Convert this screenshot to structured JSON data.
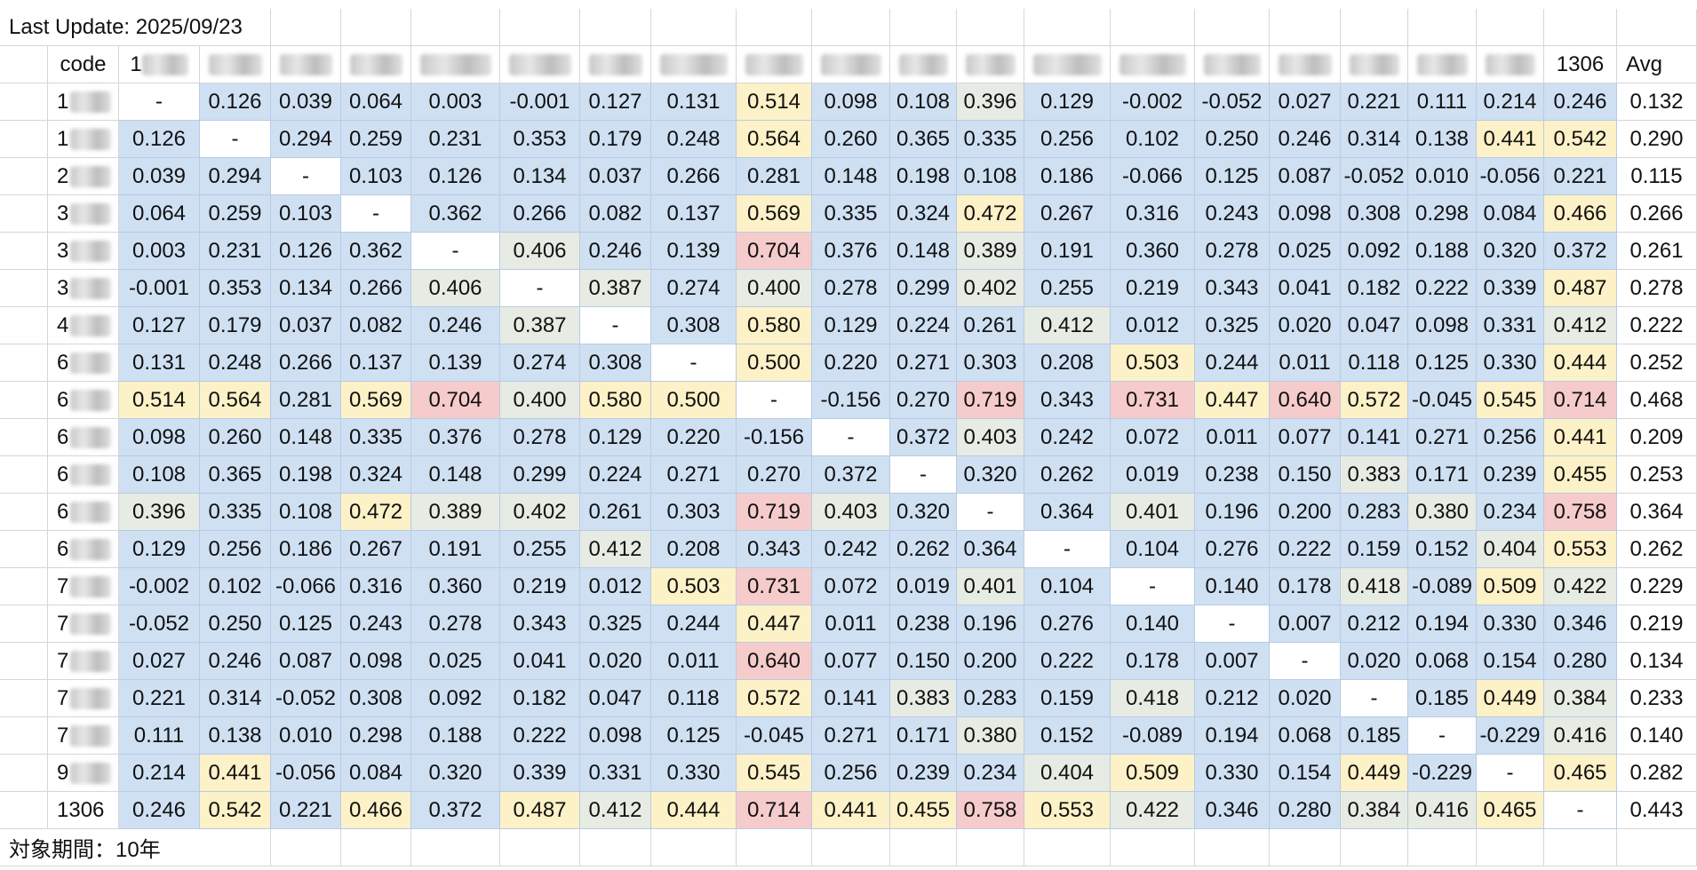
{
  "last_update": "Last Update: 2025/09/23",
  "header": {
    "code_label": "code",
    "first_col_prefix": "1",
    "last_col": "1306",
    "avg_label": "Avg"
  },
  "row_codes": [
    "1",
    "1",
    "2",
    "3",
    "3",
    "3",
    "4",
    "6",
    "6",
    "6",
    "6",
    "6",
    "6",
    "7",
    "7",
    "7",
    "7",
    "7",
    "9",
    "1306"
  ],
  "row_code_blurred": [
    true,
    true,
    true,
    true,
    true,
    true,
    true,
    true,
    true,
    true,
    true,
    true,
    true,
    true,
    true,
    true,
    true,
    true,
    true,
    false
  ],
  "matrix": [
    [
      "-",
      "0.126",
      "0.039",
      "0.064",
      "0.003",
      "-0.001",
      "0.127",
      "0.131",
      "0.514",
      "0.098",
      "0.108",
      "0.396",
      "0.129",
      "-0.002",
      "-0.052",
      "0.027",
      "0.221",
      "0.111",
      "0.214",
      "0.246"
    ],
    [
      "0.126",
      "-",
      "0.294",
      "0.259",
      "0.231",
      "0.353",
      "0.179",
      "0.248",
      "0.564",
      "0.260",
      "0.365",
      "0.335",
      "0.256",
      "0.102",
      "0.250",
      "0.246",
      "0.314",
      "0.138",
      "0.441",
      "0.542"
    ],
    [
      "0.039",
      "0.294",
      "-",
      "0.103",
      "0.126",
      "0.134",
      "0.037",
      "0.266",
      "0.281",
      "0.148",
      "0.198",
      "0.108",
      "0.186",
      "-0.066",
      "0.125",
      "0.087",
      "-0.052",
      "0.010",
      "-0.056",
      "0.221"
    ],
    [
      "0.064",
      "0.259",
      "0.103",
      "-",
      "0.362",
      "0.266",
      "0.082",
      "0.137",
      "0.569",
      "0.335",
      "0.324",
      "0.472",
      "0.267",
      "0.316",
      "0.243",
      "0.098",
      "0.308",
      "0.298",
      "0.084",
      "0.466"
    ],
    [
      "0.003",
      "0.231",
      "0.126",
      "0.362",
      "-",
      "0.406",
      "0.246",
      "0.139",
      "0.704",
      "0.376",
      "0.148",
      "0.389",
      "0.191",
      "0.360",
      "0.278",
      "0.025",
      "0.092",
      "0.188",
      "0.320",
      "0.372"
    ],
    [
      "-0.001",
      "0.353",
      "0.134",
      "0.266",
      "0.406",
      "-",
      "0.387",
      "0.274",
      "0.400",
      "0.278",
      "0.299",
      "0.402",
      "0.255",
      "0.219",
      "0.343",
      "0.041",
      "0.182",
      "0.222",
      "0.339",
      "0.487"
    ],
    [
      "0.127",
      "0.179",
      "0.037",
      "0.082",
      "0.246",
      "0.387",
      "-",
      "0.308",
      "0.580",
      "0.129",
      "0.224",
      "0.261",
      "0.412",
      "0.012",
      "0.325",
      "0.020",
      "0.047",
      "0.098",
      "0.331",
      "0.412"
    ],
    [
      "0.131",
      "0.248",
      "0.266",
      "0.137",
      "0.139",
      "0.274",
      "0.308",
      "-",
      "0.500",
      "0.220",
      "0.271",
      "0.303",
      "0.208",
      "0.503",
      "0.244",
      "0.011",
      "0.118",
      "0.125",
      "0.330",
      "0.444"
    ],
    [
      "0.514",
      "0.564",
      "0.281",
      "0.569",
      "0.704",
      "0.400",
      "0.580",
      "0.500",
      "-",
      "-0.156",
      "0.270",
      "0.719",
      "0.343",
      "0.731",
      "0.447",
      "0.640",
      "0.572",
      "-0.045",
      "0.545",
      "0.714"
    ],
    [
      "0.098",
      "0.260",
      "0.148",
      "0.335",
      "0.376",
      "0.278",
      "0.129",
      "0.220",
      "-0.156",
      "-",
      "0.372",
      "0.403",
      "0.242",
      "0.072",
      "0.011",
      "0.077",
      "0.141",
      "0.271",
      "0.256",
      "0.441"
    ],
    [
      "0.108",
      "0.365",
      "0.198",
      "0.324",
      "0.148",
      "0.299",
      "0.224",
      "0.271",
      "0.270",
      "0.372",
      "-",
      "0.320",
      "0.262",
      "0.019",
      "0.238",
      "0.150",
      "0.383",
      "0.171",
      "0.239",
      "0.455"
    ],
    [
      "0.396",
      "0.335",
      "0.108",
      "0.472",
      "0.389",
      "0.402",
      "0.261",
      "0.303",
      "0.719",
      "0.403",
      "0.320",
      "-",
      "0.364",
      "0.401",
      "0.196",
      "0.200",
      "0.283",
      "0.380",
      "0.234",
      "0.758"
    ],
    [
      "0.129",
      "0.256",
      "0.186",
      "0.267",
      "0.191",
      "0.255",
      "0.412",
      "0.208",
      "0.343",
      "0.242",
      "0.262",
      "0.364",
      "-",
      "0.104",
      "0.276",
      "0.222",
      "0.159",
      "0.152",
      "0.404",
      "0.553"
    ],
    [
      "-0.002",
      "0.102",
      "-0.066",
      "0.316",
      "0.360",
      "0.219",
      "0.012",
      "0.503",
      "0.731",
      "0.072",
      "0.019",
      "0.401",
      "0.104",
      "-",
      "0.140",
      "0.178",
      "0.418",
      "-0.089",
      "0.509",
      "0.422"
    ],
    [
      "-0.052",
      "0.250",
      "0.125",
      "0.243",
      "0.278",
      "0.343",
      "0.325",
      "0.244",
      "0.447",
      "0.011",
      "0.238",
      "0.196",
      "0.276",
      "0.140",
      "-",
      "0.007",
      "0.212",
      "0.194",
      "0.330",
      "0.346"
    ],
    [
      "0.027",
      "0.246",
      "0.087",
      "0.098",
      "0.025",
      "0.041",
      "0.020",
      "0.011",
      "0.640",
      "0.077",
      "0.150",
      "0.200",
      "0.222",
      "0.178",
      "0.007",
      "-",
      "0.020",
      "0.068",
      "0.154",
      "0.280"
    ],
    [
      "0.221",
      "0.314",
      "-0.052",
      "0.308",
      "0.092",
      "0.182",
      "0.047",
      "0.118",
      "0.572",
      "0.141",
      "0.383",
      "0.283",
      "0.159",
      "0.418",
      "0.212",
      "0.020",
      "-",
      "0.185",
      "0.449",
      "0.384"
    ],
    [
      "0.111",
      "0.138",
      "0.010",
      "0.298",
      "0.188",
      "0.222",
      "0.098",
      "0.125",
      "-0.045",
      "0.271",
      "0.171",
      "0.380",
      "0.152",
      "-0.089",
      "0.194",
      "0.068",
      "0.185",
      "-",
      "-0.229",
      "0.416"
    ],
    [
      "0.214",
      "0.441",
      "-0.056",
      "0.084",
      "0.320",
      "0.339",
      "0.331",
      "0.330",
      "0.545",
      "0.256",
      "0.239",
      "0.234",
      "0.404",
      "0.509",
      "0.330",
      "0.154",
      "0.449",
      "-0.229",
      "-",
      "0.465"
    ],
    [
      "0.246",
      "0.542",
      "0.221",
      "0.466",
      "0.372",
      "0.487",
      "0.412",
      "0.444",
      "0.714",
      "0.441",
      "0.455",
      "0.758",
      "0.553",
      "0.422",
      "0.346",
      "0.280",
      "0.384",
      "0.416",
      "0.465",
      "-"
    ]
  ],
  "averages": [
    "0.132",
    "0.290",
    "0.115",
    "0.266",
    "0.261",
    "0.278",
    "0.222",
    "0.252",
    "0.468",
    "0.209",
    "0.253",
    "0.364",
    "0.262",
    "0.229",
    "0.219",
    "0.134",
    "0.233",
    "0.140",
    "0.282",
    "0.443"
  ],
  "footer_note": "対象期間：10年",
  "colors": {
    "low": "#cfe0f3",
    "mid": "#e6ebe3",
    "high": "#fdf1c7",
    "very_high": "#f6cbcb",
    "diagonal": "#ffffff",
    "grid": "#d6d6d6"
  }
}
